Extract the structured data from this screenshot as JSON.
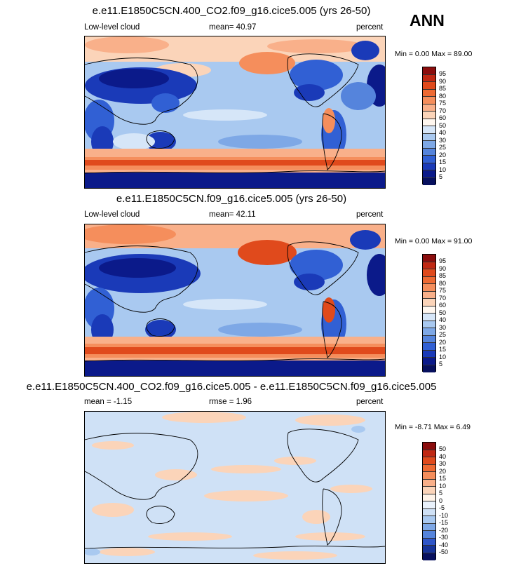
{
  "season": "ANN",
  "panels": [
    {
      "title": "e.e11.E1850C5CN.400_CO2.f09_g16.cice5.005 (yrs 26-50)",
      "left_label": "Low-level cloud",
      "center_label": "mean=  40.97",
      "right_label": "percent",
      "minmax": "Min =   0.00 Max =  89.00",
      "colorbar_labels": [
        "95",
        "90",
        "85",
        "80",
        "75",
        "70",
        "60",
        "50",
        "40",
        "30",
        "25",
        "20",
        "15",
        "10",
        "5"
      ]
    },
    {
      "title": "e.e11.E1850C5CN.f09_g16.cice5.005 (yrs 26-50)",
      "left_label": "Low-level cloud",
      "center_label": "mean=  42.11",
      "right_label": "percent",
      "minmax": "Min =   0.00 Max =  91.00",
      "colorbar_labels": [
        "95",
        "90",
        "85",
        "80",
        "75",
        "70",
        "60",
        "50",
        "40",
        "30",
        "25",
        "20",
        "15",
        "10",
        "5"
      ]
    },
    {
      "title": "e.e11.E1850C5CN.400_CO2.f09_g16.cice5.005 - e.e11.E1850C5CN.f09_g16.cice5.005",
      "left_label": "mean =  -1.15",
      "center_label": "rmse =   1.96",
      "right_label": "percent",
      "minmax": "Min =  -8.71 Max =   6.49",
      "colorbar_labels": [
        "50",
        "40",
        "30",
        "20",
        "15",
        "10",
        "5",
        "0",
        "-5",
        "-10",
        "-15",
        "-20",
        "-30",
        "-40",
        "-50"
      ]
    }
  ],
  "colors": {
    "abs_scale": [
      "#8b0d0d",
      "#c02813",
      "#e04a1c",
      "#ee6a33",
      "#f58e5c",
      "#f9b08a",
      "#fbd4b9",
      "#fff7ef",
      "#d6e6f8",
      "#a9c9f0",
      "#7ea8e6",
      "#5584dc",
      "#3160d4",
      "#1a3ab8",
      "#0b1a8a",
      "#07105e"
    ],
    "diff_scale": [
      "#8b0d0d",
      "#c02813",
      "#e04a1c",
      "#ee6a33",
      "#f58e5c",
      "#f9b08a",
      "#fbd4b9",
      "#fff3e8",
      "#e9f1fb",
      "#cfe1f6",
      "#a9c9f0",
      "#7ea8e6",
      "#5584dc",
      "#2e55c8",
      "#163399",
      "#07105e"
    ]
  }
}
